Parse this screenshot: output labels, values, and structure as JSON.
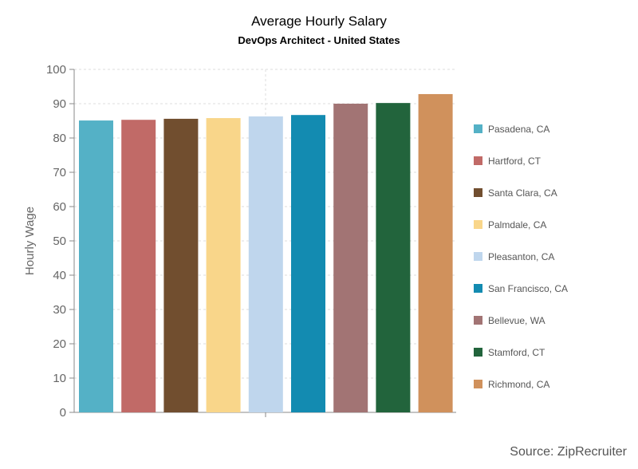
{
  "chart_data": {
    "type": "bar",
    "title": "Average Hourly Salary",
    "subtitle": "DevOps Architect - United States",
    "ylabel": "Hourly Wage",
    "xlabel": "",
    "ylim": [
      0,
      100
    ],
    "yticks": [
      0,
      10,
      20,
      30,
      40,
      50,
      60,
      70,
      80,
      90,
      100
    ],
    "grid": true,
    "legend_position": "right",
    "categories": [
      "Pasadena, CA",
      "Hartford, CT",
      "Santa Clara, CA",
      "Palmdale, CA",
      "Pleasanton, CA",
      "San Francisco, CA",
      "Bellevue, WA",
      "Stamford, CT",
      "Richmond, CA"
    ],
    "values": [
      85.1,
      85.3,
      85.6,
      85.8,
      86.3,
      86.7,
      90.0,
      90.2,
      92.8
    ],
    "colors": [
      "#54b1c6",
      "#c16a67",
      "#714e2f",
      "#f9d68a",
      "#bfd6ed",
      "#138bb1",
      "#a27474",
      "#22643c",
      "#d0915c"
    ],
    "source": "Source: ZipRecruiter"
  }
}
